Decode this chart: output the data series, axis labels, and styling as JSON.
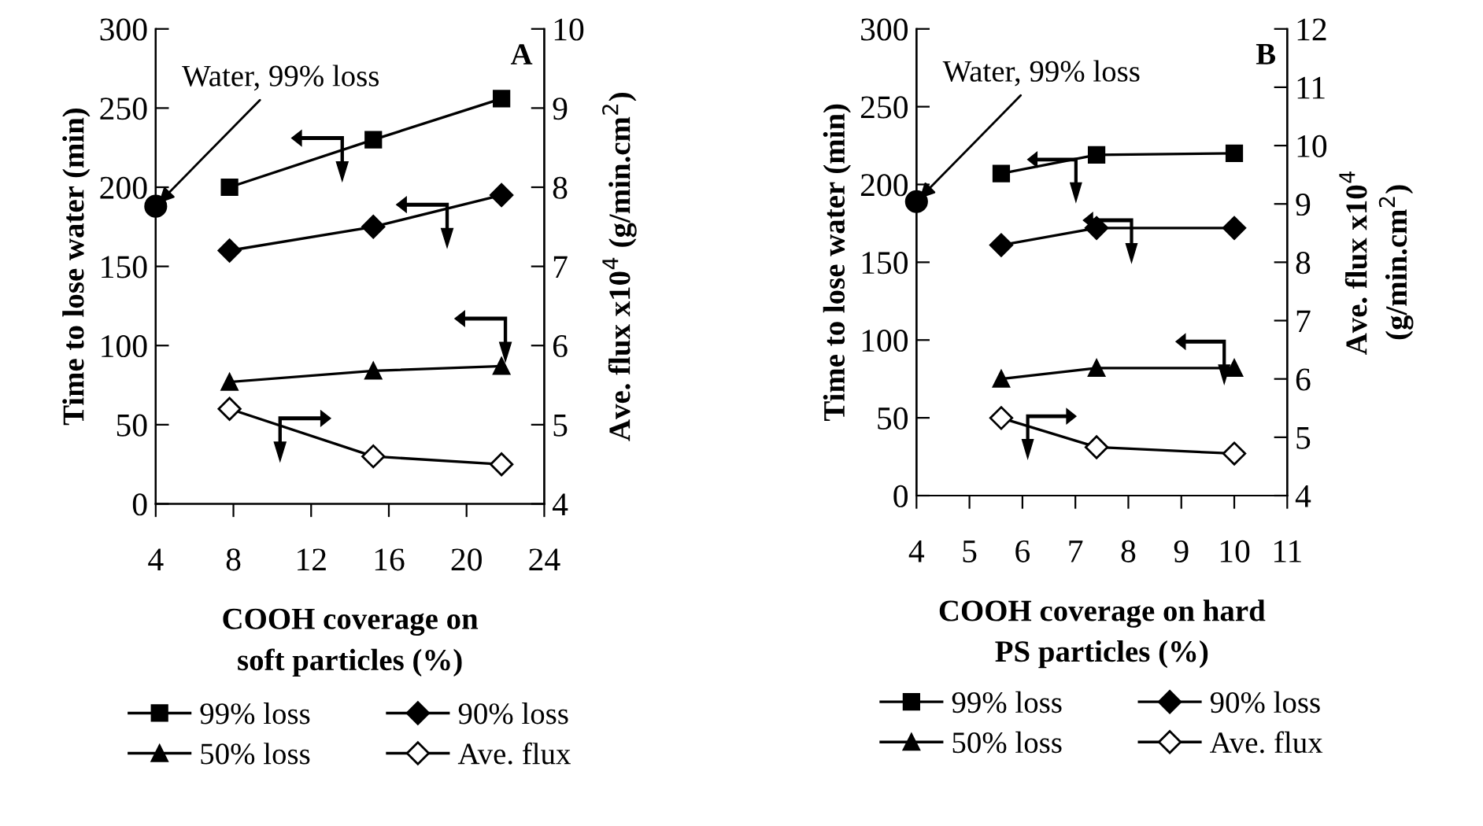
{
  "chart_data": [
    {
      "type": "line",
      "title": "A",
      "xlabel": "COOH coverage on\nsoft particles (%)",
      "ylabel": "Time to lose water (min)",
      "y2label": "Ave. flux x10$^{4}$ (g/min.cm$^{2}$)",
      "xlim": [
        4,
        24
      ],
      "xticks": [
        4,
        8,
        12,
        16,
        20,
        24
      ],
      "ylim": [
        0,
        300
      ],
      "yticks": [
        0,
        50,
        100,
        150,
        200,
        250,
        300
      ],
      "y2lim": [
        4,
        10
      ],
      "y2ticks": [
        4,
        5,
        6,
        7,
        8,
        9,
        10
      ],
      "legend": "bottom",
      "grid": false,
      "annotations": [
        {
          "text": "Water, 99% loss",
          "x": 4,
          "y": 188
        }
      ],
      "series": [
        {
          "name": "99% loss",
          "color": "#000000",
          "marker": "square",
          "x": [
            7.8,
            15.2,
            21.8
          ],
          "values": [
            200,
            230,
            256
          ]
        },
        {
          "name": "90% loss",
          "color": "#000000",
          "marker": "diamond",
          "x": [
            7.8,
            15.2,
            21.8
          ],
          "values": [
            160,
            175,
            195
          ]
        },
        {
          "name": "50% loss",
          "color": "#000000",
          "marker": "triangle",
          "x": [
            7.8,
            15.2,
            21.8
          ],
          "values": [
            77,
            84,
            87
          ]
        },
        {
          "name": "Ave. flux",
          "color": "#000000",
          "marker": "diamond",
          "axis": "y2",
          "x": [
            7.8,
            15.2,
            21.8
          ],
          "values": [
            5.2,
            4.6,
            4.5
          ]
        },
        {
          "type": "scatter",
          "color": "#000000",
          "marker": "circle",
          "x": [
            4
          ],
          "values": [
            188
          ]
        }
      ]
    },
    {
      "type": "line",
      "title": "B",
      "xlabel": "COOH coverage on hard\nPS particles (%)",
      "ylabel": "Time to lose water (min)",
      "y2label": "Ave. flux x10$^{4}$\n(g/min.cm$^{2}$)",
      "xlim": [
        4,
        11
      ],
      "xticks": [
        4,
        5,
        6,
        7,
        8,
        9,
        10,
        11
      ],
      "ylim": [
        0,
        300
      ],
      "yticks": [
        0,
        50,
        100,
        150,
        200,
        250,
        300
      ],
      "y2lim": [
        4,
        12
      ],
      "y2ticks": [
        4,
        5,
        6,
        7,
        8,
        9,
        10,
        11,
        12
      ],
      "legend": "bottom",
      "grid": false,
      "annotations": [
        {
          "text": "Water, 99% loss",
          "x": 4,
          "y": 189
        }
      ],
      "series": [
        {
          "name": "99% loss",
          "color": "#000000",
          "marker": "square",
          "x": [
            5.6,
            7.4,
            10
          ],
          "values": [
            207,
            219,
            220
          ]
        },
        {
          "name": "90% loss",
          "color": "#000000",
          "marker": "diamond",
          "x": [
            5.6,
            7.4,
            10
          ],
          "values": [
            161,
            172,
            172
          ]
        },
        {
          "name": "50% loss",
          "color": "#000000",
          "marker": "triangle",
          "x": [
            5.6,
            7.4,
            10
          ],
          "values": [
            75,
            82,
            82
          ]
        },
        {
          "name": "Ave. flux",
          "color": "#000000",
          "marker": "diamond",
          "axis": "y2",
          "x": [
            5.6,
            7.4,
            10
          ],
          "values": [
            5.33,
            4.83,
            4.72
          ]
        },
        {
          "type": "scatter",
          "color": "#000000",
          "marker": "circle",
          "x": [
            4
          ],
          "values": [
            189
          ]
        }
      ]
    }
  ]
}
